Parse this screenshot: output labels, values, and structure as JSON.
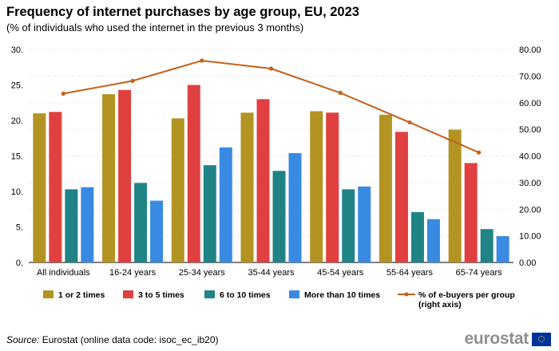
{
  "title": "Frequency of internet purchases by age group, EU, 2023",
  "subtitle": "(% of individuals who used the internet in the previous 3 months)",
  "source": {
    "label": "Source:",
    "text": " Eurostat (online data code: isoc_ec_ib20)"
  },
  "logo": "eurostat",
  "chart_data": {
    "type": "bar",
    "categories": [
      "All individuals",
      "16-24 years",
      "25-34 years",
      "35-44 years",
      "45-54 years",
      "55-64 years",
      "65-74 years"
    ],
    "series": [
      {
        "name": "1 or 2 times",
        "color": "#b39322",
        "values": [
          21.0,
          23.7,
          20.3,
          21.1,
          21.3,
          20.8,
          18.7
        ]
      },
      {
        "name": "3 to 5 times",
        "color": "#e04040",
        "values": [
          21.2,
          24.3,
          25.0,
          23.0,
          21.1,
          18.4,
          14.0
        ]
      },
      {
        "name": "6 to 10 times",
        "color": "#208486",
        "values": [
          10.3,
          11.2,
          13.7,
          12.9,
          10.3,
          7.1,
          4.7
        ]
      },
      {
        "name": "More than 10 times",
        "color": "#388ae2",
        "values": [
          10.6,
          8.7,
          16.2,
          15.4,
          10.7,
          6.1,
          3.7
        ]
      }
    ],
    "line_series": {
      "name_lines": [
        "% of e-buyers per group",
        "(right axis)"
      ],
      "color": "#c3601c",
      "values": [
        63.4,
        68.2,
        75.8,
        72.8,
        63.7,
        52.6,
        41.3
      ]
    },
    "y_left": {
      "ylim": [
        0,
        30
      ],
      "ticks": [
        "0.",
        "5.",
        "10.",
        "15.",
        "20.",
        "25.",
        "30."
      ]
    },
    "y_right": {
      "ylim": [
        0,
        80
      ],
      "ticks": [
        "0.00",
        "10.00",
        "20.00",
        "30.00",
        "40.00",
        "50.00",
        "60.00",
        "70.00",
        "80.00"
      ]
    },
    "grid": true,
    "legend_position": "bottom"
  }
}
